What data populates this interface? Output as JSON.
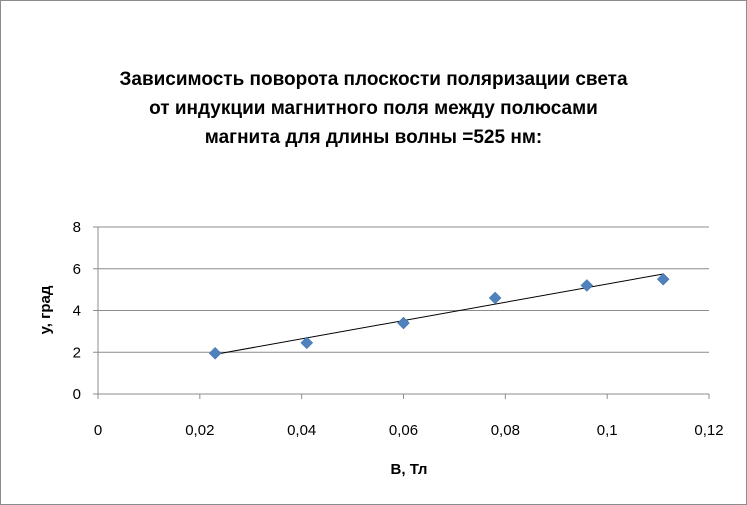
{
  "chart_data": {
    "type": "scatter",
    "title_lines": [
      "Зависимость  поворота плоскости поляризации света",
      "от индукции магнитного поля между полюсами",
      "магнита для длины волны =525 нм:"
    ],
    "xlabel": "B, Тл",
    "ylabel": "у, град",
    "xlim": [
      0,
      0.12
    ],
    "ylim": [
      0,
      8
    ],
    "x_ticks": [
      "0",
      "0,02",
      "0,04",
      "0,06",
      "0,08",
      "0,1",
      "0,12"
    ],
    "y_ticks": [
      "0",
      "2",
      "4",
      "6",
      "8"
    ],
    "grid": "horizontal",
    "marker": "diamond",
    "marker_color": "#4f81bd",
    "series": [
      {
        "x": [
          0.023,
          0.041,
          0.06,
          0.078,
          0.096,
          0.111
        ],
        "y": [
          1.95,
          2.45,
          3.4,
          4.6,
          5.2,
          5.5
        ]
      }
    ],
    "trendline": {
      "type": "linear",
      "x": [
        0.023,
        0.111
      ],
      "y": [
        1.9,
        5.75
      ],
      "color": "#000000"
    }
  }
}
